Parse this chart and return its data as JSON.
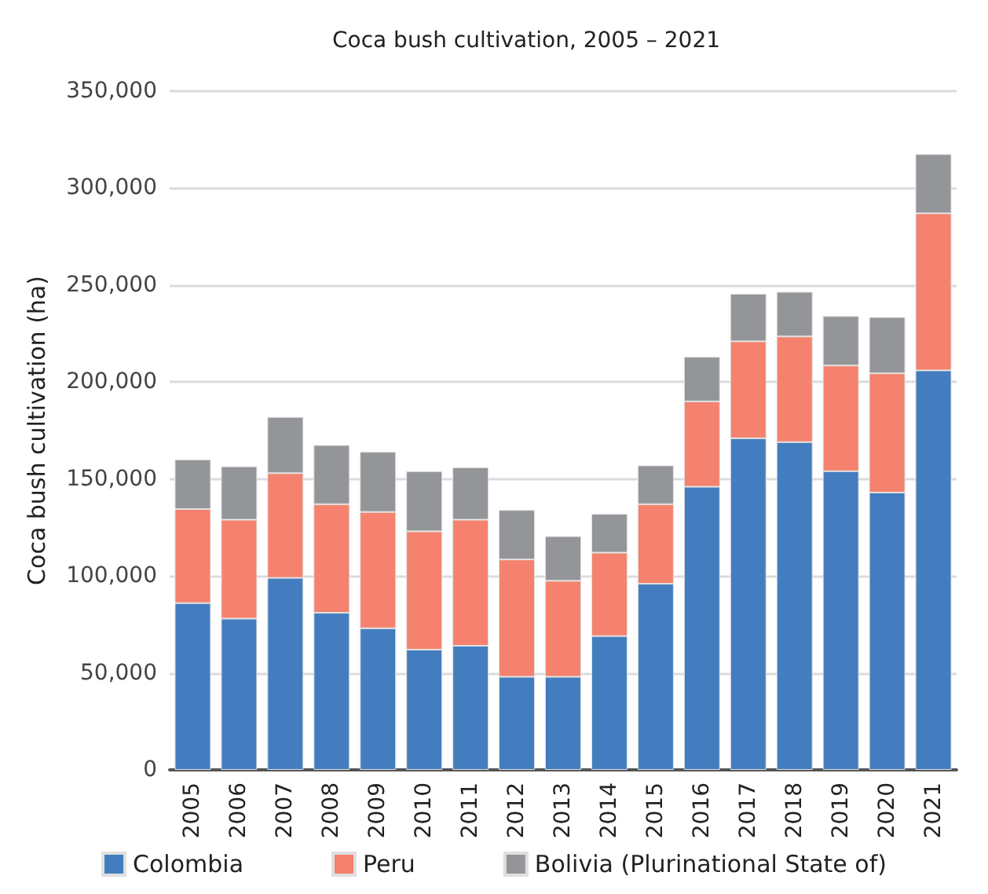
{
  "chart_data": {
    "type": "bar",
    "title": "Coca bush cultivation, 2005 – 2021",
    "ylabel": "Coca bush cultivation (ha)",
    "categories": [
      "2005",
      "2006",
      "2007",
      "2008",
      "2009",
      "2010",
      "2011",
      "2012",
      "2013",
      "2014",
      "2015",
      "2016",
      "2017",
      "2018",
      "2019",
      "2020",
      "2021"
    ],
    "stacked": true,
    "series": [
      {
        "name": "Colombia",
        "color": "#447dbf",
        "values": [
          86000,
          78000,
          99000,
          81000,
          73000,
          62000,
          64000,
          48000,
          48000,
          69000,
          96000,
          146000,
          171000,
          169000,
          154000,
          143000,
          206000
        ]
      },
      {
        "name": "Peru",
        "color": "#f4826e",
        "values": [
          48500,
          51000,
          54000,
          56000,
          60000,
          61000,
          65000,
          60500,
          49500,
          43000,
          41000,
          44000,
          50000,
          54500,
          54500,
          61500,
          81000
        ]
      },
      {
        "name": "Bolivia (Plurinational State of)",
        "color": "#939598",
        "values": [
          25500,
          27500,
          29000,
          30500,
          31000,
          31000,
          27000,
          25500,
          23000,
          20000,
          20000,
          23000,
          24500,
          23000,
          25500,
          29000,
          30500
        ]
      }
    ],
    "ylim": [
      0,
      350000
    ],
    "yticks": [
      {
        "value": 0,
        "label": "0"
      },
      {
        "value": 50000,
        "label": "50,000"
      },
      {
        "value": 100000,
        "label": "100,000"
      },
      {
        "value": 150000,
        "label": "150,000"
      },
      {
        "value": 200000,
        "label": "200,000"
      },
      {
        "value": 250000,
        "label": "250,000"
      },
      {
        "value": 300000,
        "label": "300,000"
      },
      {
        "value": 350000,
        "label": "350,000"
      }
    ],
    "grid": "y",
    "legend": "bottom"
  }
}
